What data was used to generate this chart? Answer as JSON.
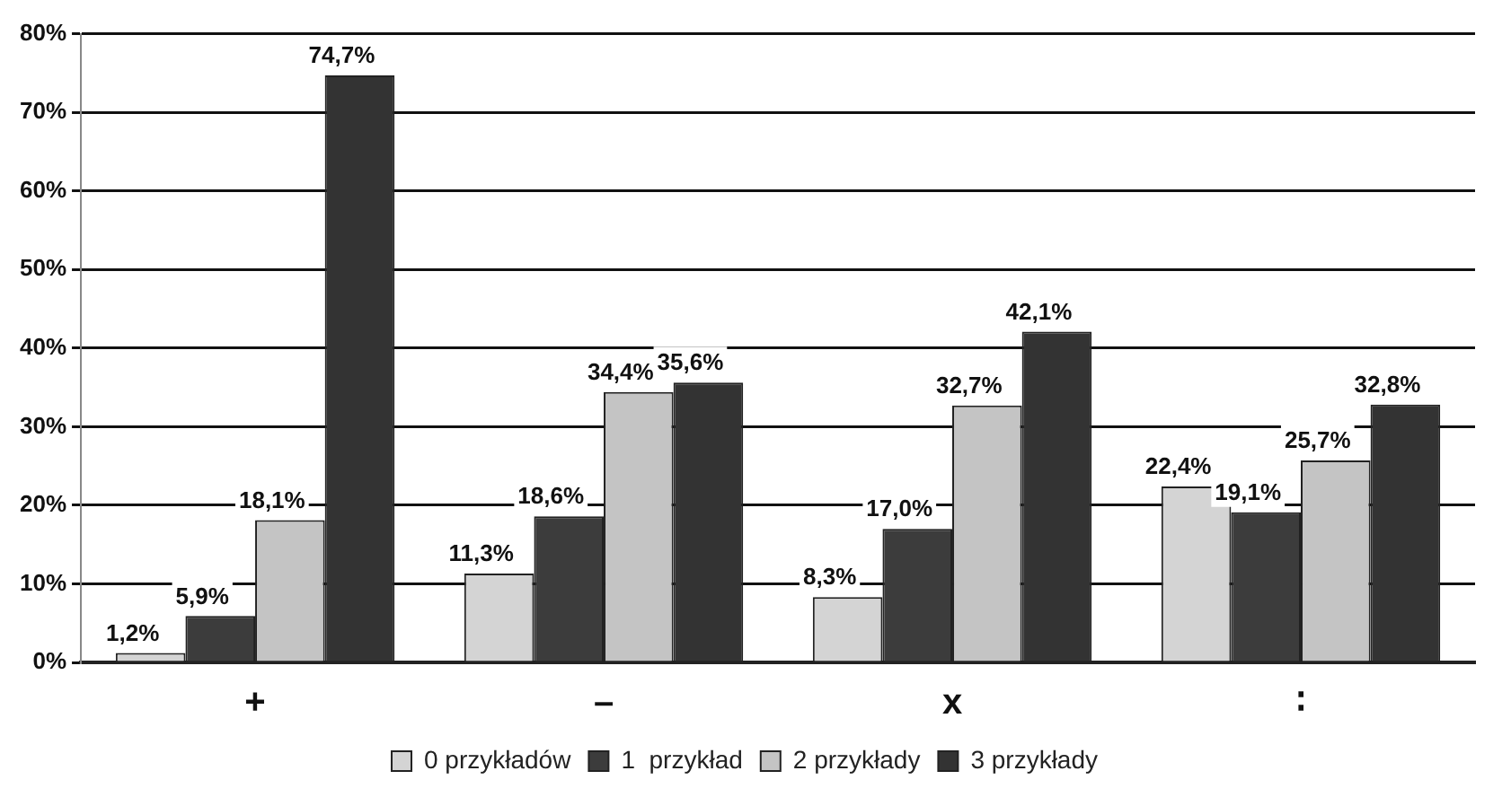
{
  "chart_data": {
    "type": "bar",
    "categories": [
      "+",
      "–",
      "x",
      "∶"
    ],
    "series": [
      {
        "name": "0 przykładów",
        "color": "#d4d4d4",
        "values": [
          1.2,
          11.3,
          8.3,
          22.4
        ],
        "value_labels": [
          "1,2%",
          "11,3%",
          "8,3%",
          "22,4%"
        ]
      },
      {
        "name": "1  przykład",
        "color": "#3c3c3c",
        "values": [
          5.9,
          18.6,
          17.0,
          19.1
        ],
        "value_labels": [
          "5,9%",
          "18,6%",
          "17,0%",
          "19,1%"
        ]
      },
      {
        "name": "2 przykłady",
        "color": "#c4c4c4",
        "values": [
          18.1,
          34.4,
          32.7,
          25.7
        ],
        "value_labels": [
          "18,1%",
          "34,4%",
          "32,7%",
          "25,7%"
        ]
      },
      {
        "name": "3 przykłady",
        "color": "#333333",
        "values": [
          74.7,
          35.6,
          42.1,
          32.8
        ],
        "value_labels": [
          "74,7%",
          "35,6%",
          "42,1%",
          "32,8%"
        ]
      }
    ],
    "ylim": [
      0,
      80
    ],
    "yticks": [
      {
        "value": 0,
        "label": "0%"
      },
      {
        "value": 10,
        "label": "10%"
      },
      {
        "value": 20,
        "label": "20%"
      },
      {
        "value": 30,
        "label": "30%"
      },
      {
        "value": 40,
        "label": "40%"
      },
      {
        "value": 50,
        "label": "50%"
      },
      {
        "value": 60,
        "label": "60%"
      },
      {
        "value": 70,
        "label": "70%"
      },
      {
        "value": 80,
        "label": "80%"
      }
    ],
    "grid": "y",
    "legend": "bottom"
  }
}
